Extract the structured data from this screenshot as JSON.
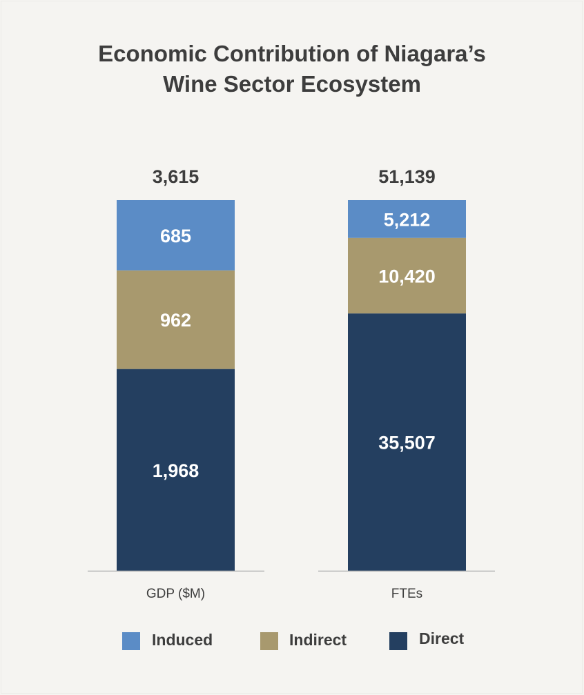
{
  "colors": {
    "Induced": "#5b8cc6",
    "Indirect": "#a8996e",
    "Direct": "#243f60"
  },
  "chart_data": {
    "type": "bar",
    "stacked": true,
    "title": "Economic Contribution of Niagara’s Wine Sector Ecosystem",
    "title_lines": [
      "Economic Contribution of Niagara’s",
      "Wine Sector Ecosystem"
    ],
    "categories": [
      "GDP ($M)",
      "FTEs"
    ],
    "totals": [
      "3,615",
      "51,139"
    ],
    "series": [
      {
        "name": "Direct",
        "values": [
          1968,
          35507
        ],
        "labels": [
          "1,968",
          "35,507"
        ]
      },
      {
        "name": "Indirect",
        "values": [
          962,
          10420
        ],
        "labels": [
          "962",
          "10,420"
        ]
      },
      {
        "name": "Induced",
        "values": [
          685,
          5212
        ],
        "labels": [
          "685",
          "5,212"
        ]
      }
    ],
    "legend": [
      "Induced",
      "Indirect",
      "Direct"
    ],
    "legend_position": "bottom",
    "grid": false
  }
}
